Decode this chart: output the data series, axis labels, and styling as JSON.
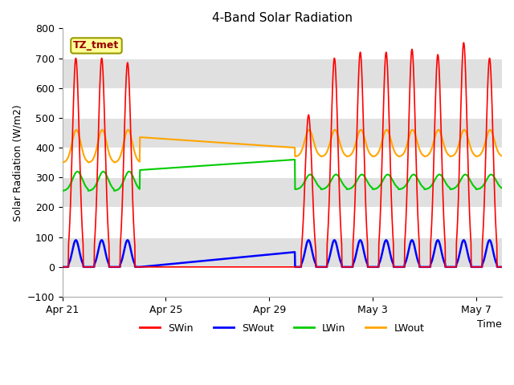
{
  "title": "4-Band Solar Radiation",
  "ylabel": "Solar Radiation (W/m2)",
  "xlabel": "Time",
  "ylim": [
    -100,
    800
  ],
  "label_text": "TZ_tmet",
  "series_colors": {
    "SWin": "#ff0000",
    "SWout": "#0000ff",
    "LWin": "#00cc00",
    "LWout": "#ffa500"
  },
  "xtick_labels": [
    "Apr 21",
    "Apr 25",
    "Apr 29",
    "May 3",
    "May 7"
  ],
  "title_fontsize": 11,
  "axis_fontsize": 9,
  "n_days": 17,
  "dt_hours": 0.25,
  "band_colors": [
    "#ffffff",
    "#e0e0e0"
  ],
  "band_edges": [
    -100,
    0,
    100,
    200,
    300,
    400,
    500,
    600,
    700,
    800
  ]
}
